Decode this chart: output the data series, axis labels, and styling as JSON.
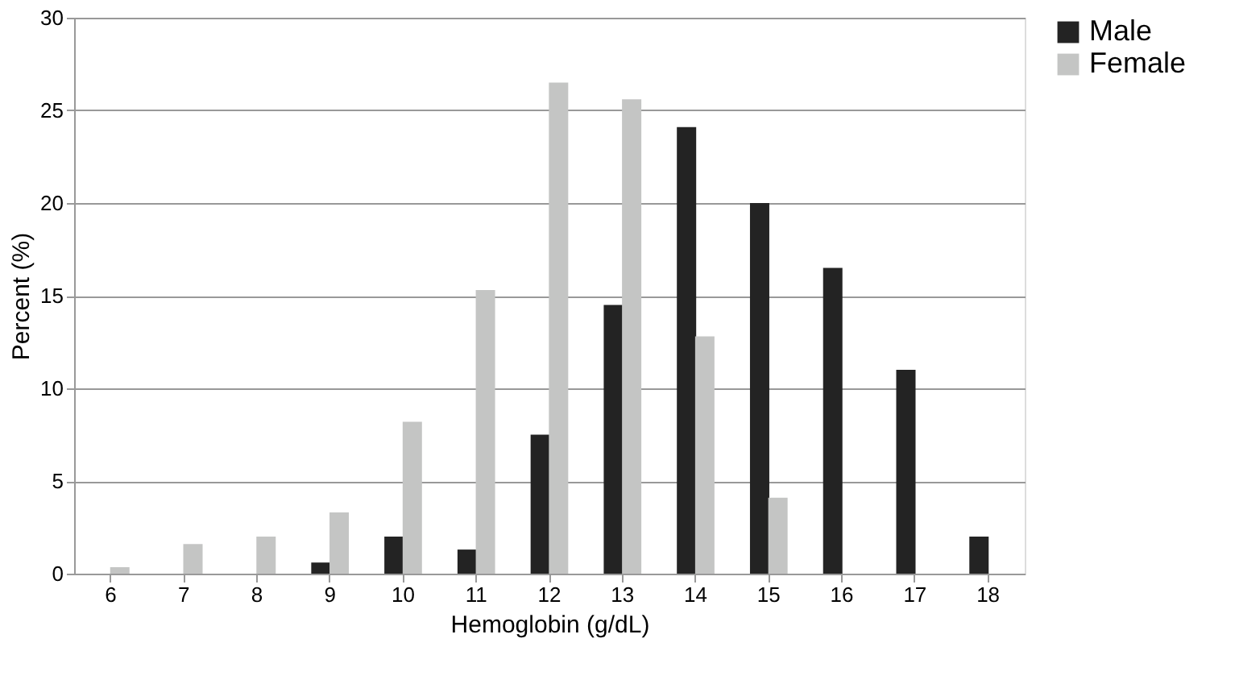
{
  "chart_data": {
    "type": "bar",
    "xlabel": "Hemoglobin (g/dL)",
    "ylabel": "Percent (%)",
    "categories": [
      "6",
      "7",
      "8",
      "9",
      "10",
      "11",
      "12",
      "13",
      "14",
      "15",
      "16",
      "17",
      "18"
    ],
    "series": [
      {
        "name": "Male",
        "color": "#232323",
        "values": [
          0,
          0,
          0,
          0.6,
          2.0,
          1.3,
          7.5,
          14.5,
          24.1,
          20.0,
          16.5,
          11.0,
          2.0
        ]
      },
      {
        "name": "Female",
        "color": "#c4c5c4",
        "values": [
          0.35,
          1.6,
          2.0,
          3.3,
          8.2,
          15.3,
          26.5,
          25.6,
          12.8,
          4.1,
          0,
          0,
          0
        ]
      }
    ],
    "ylim": [
      0,
      30
    ],
    "yticks": [
      0,
      5,
      10,
      15,
      20,
      25,
      30
    ],
    "grid": "y",
    "legend": "right"
  }
}
